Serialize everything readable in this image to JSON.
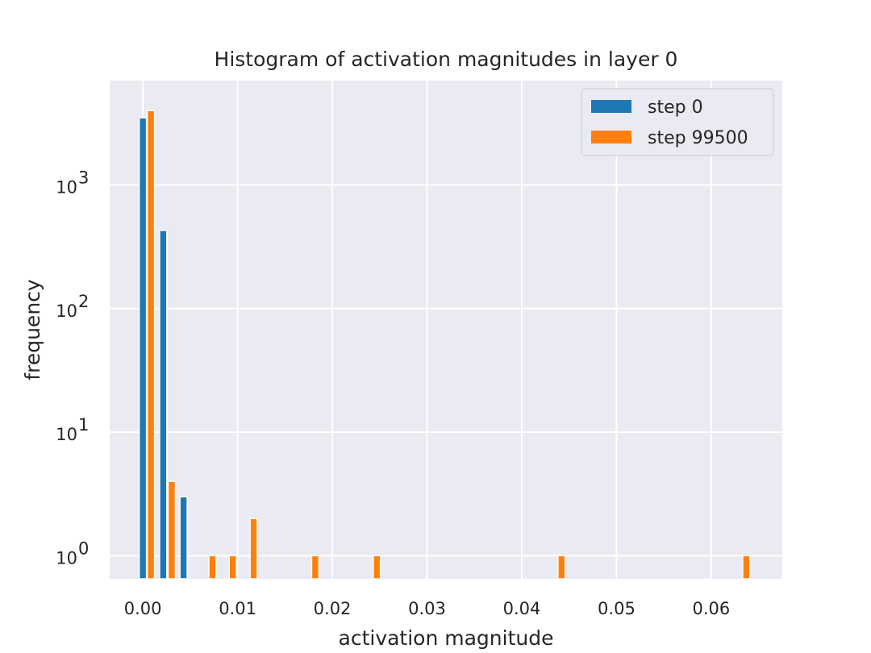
{
  "chart_data": {
    "type": "bar",
    "title": "Histogram of activation magnitudes in layer 0",
    "xlabel": "activation magnitude",
    "ylabel": "frequency",
    "yscale": "log",
    "xlim": [
      -0.0035,
      0.0675
    ],
    "ylim": [
      0.65,
      7000
    ],
    "grid": true,
    "legend_position": "top-right",
    "x_ticks": [
      {
        "value": 0.0,
        "label": "0.00"
      },
      {
        "value": 0.01,
        "label": "0.01"
      },
      {
        "value": 0.02,
        "label": "0.02"
      },
      {
        "value": 0.03,
        "label": "0.03"
      },
      {
        "value": 0.04,
        "label": "0.04"
      },
      {
        "value": 0.05,
        "label": "0.05"
      },
      {
        "value": 0.06,
        "label": "0.06"
      }
    ],
    "y_ticks": [
      {
        "value": 1,
        "base": "10",
        "exp": "0"
      },
      {
        "value": 10,
        "base": "10",
        "exp": "1"
      },
      {
        "value": 100,
        "base": "10",
        "exp": "2"
      },
      {
        "value": 1000,
        "base": "10",
        "exp": "3"
      }
    ],
    "series": [
      {
        "name": "step 0",
        "color": "#1f77b4",
        "bins": [
          {
            "x": 0.0,
            "value": 3500
          },
          {
            "x": 0.00215,
            "value": 430
          },
          {
            "x": 0.0043,
            "value": 3
          }
        ]
      },
      {
        "name": "step 99500",
        "color": "#ff7f0e",
        "bins": [
          {
            "x": 0.00085,
            "value": 4000
          },
          {
            "x": 0.00305,
            "value": 4
          },
          {
            "x": 0.00735,
            "value": 1
          },
          {
            "x": 0.0095,
            "value": 1
          },
          {
            "x": 0.0117,
            "value": 2
          },
          {
            "x": 0.0182,
            "value": 1
          },
          {
            "x": 0.0247,
            "value": 1
          },
          {
            "x": 0.0442,
            "value": 1
          },
          {
            "x": 0.0637,
            "value": 1
          }
        ]
      }
    ]
  }
}
